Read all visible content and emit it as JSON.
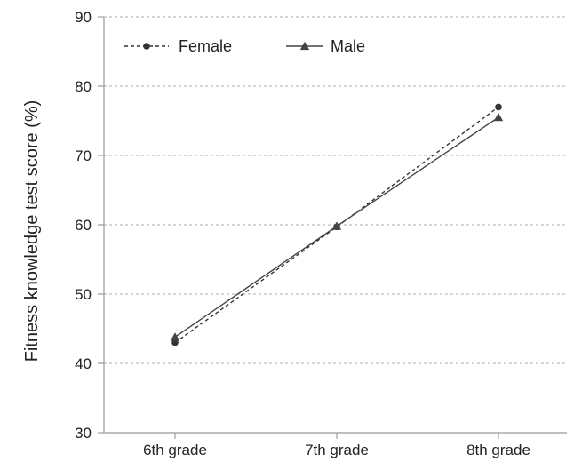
{
  "chart_data": {
    "type": "line",
    "title": "",
    "xlabel": "",
    "ylabel": "Fitness knowledge test score (%)",
    "categories": [
      "6th grade",
      "7th grade",
      "8th grade"
    ],
    "ylim": [
      30,
      90
    ],
    "yticks": [
      30,
      40,
      50,
      60,
      70,
      80,
      90
    ],
    "grid": "horizontal dotted",
    "legend_position": "top-left",
    "series": [
      {
        "name": "Female",
        "values": [
          43.0,
          59.7,
          77.0
        ],
        "line_style": "dotted",
        "marker": "circle",
        "color": "#333333"
      },
      {
        "name": "Male",
        "values": [
          43.8,
          59.8,
          75.5
        ],
        "line_style": "solid",
        "marker": "triangle",
        "color": "#444444"
      }
    ]
  }
}
